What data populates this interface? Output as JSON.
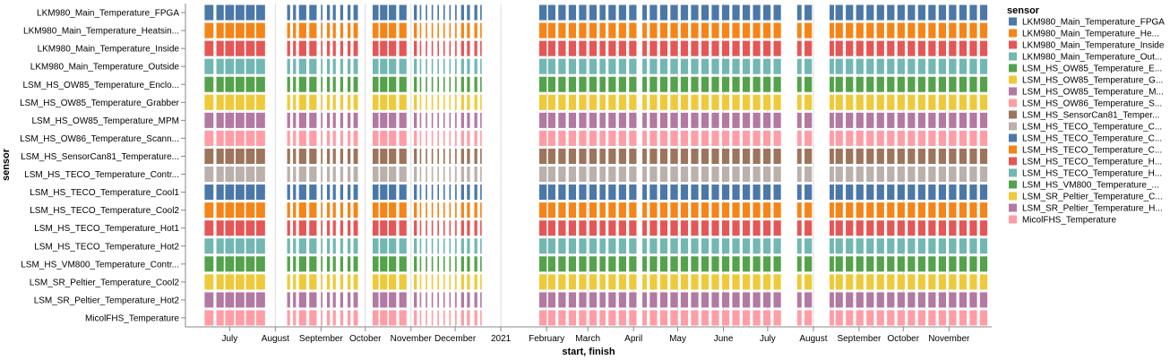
{
  "chart_data": {
    "type": "timeline",
    "ylabel": "sensor",
    "xlabel": "start, finish",
    "legend_title": "sensor",
    "legend_position": "right",
    "grid": true,
    "x_domain": [
      "2020-06-01",
      "2021-11-30"
    ],
    "x_ticks": [
      {
        "date": "2020-07-01",
        "label": "July"
      },
      {
        "date": "2020-08-01",
        "label": "August"
      },
      {
        "date": "2020-09-01",
        "label": "September"
      },
      {
        "date": "2020-10-01",
        "label": "October"
      },
      {
        "date": "2020-11-01",
        "label": "November"
      },
      {
        "date": "2020-12-01",
        "label": "December"
      },
      {
        "date": "2021-01-01",
        "label": "2021"
      },
      {
        "date": "2021-02-01",
        "label": "February"
      },
      {
        "date": "2021-03-01",
        "label": "March"
      },
      {
        "date": "2021-04-01",
        "label": "April"
      },
      {
        "date": "2021-05-01",
        "label": "May"
      },
      {
        "date": "2021-06-01",
        "label": "June"
      },
      {
        "date": "2021-07-01",
        "label": "July"
      },
      {
        "date": "2021-08-01",
        "label": "August"
      },
      {
        "date": "2021-09-01",
        "label": "September"
      },
      {
        "date": "2021-10-01",
        "label": "October"
      },
      {
        "date": "2021-11-01",
        "label": "November"
      }
    ],
    "sensors": [
      {
        "label": "LKM980_Main_Temperature_FPGA",
        "legend": "LKM980_Main_Temperature_FPGA",
        "color": "#4c78a8"
      },
      {
        "label": "LKM980_Main_Temperature_Heatsin...",
        "legend": "LKM980_Main_Temperature_He...",
        "color": "#f58518"
      },
      {
        "label": "LKM980_Main_Temperature_Inside",
        "legend": "LKM980_Main_Temperature_Inside",
        "color": "#e45756"
      },
      {
        "label": "LKM980_Main_Temperature_Outside",
        "legend": "LKM980_Main_Temperature_Out...",
        "color": "#72b7b2"
      },
      {
        "label": "LSM_HS_OW85_Temperature_Enclo...",
        "legend": "LSM_HS_OW85_Temperature_E...",
        "color": "#54a24b"
      },
      {
        "label": "LSM_HS_OW85_Temperature_Grabber",
        "legend": "LSM_HS_OW85_Temperature_G...",
        "color": "#eeca3b"
      },
      {
        "label": "LSM_HS_OW85_Temperature_MPM",
        "legend": "LSM_HS_OW85_Temperature_M...",
        "color": "#b279a2"
      },
      {
        "label": "LSM_HS_OW86_Temperature_Scann...",
        "legend": "LSM_HS_OW86_Temperature_S...",
        "color": "#ff9da6"
      },
      {
        "label": "LSM_HS_SensorCan81_Temperature...",
        "legend": "LSM_HS_SensorCan81_Temper...",
        "color": "#9d755d"
      },
      {
        "label": "LSM_HS_TECO_Temperature_Contr...",
        "legend": "LSM_HS_TECO_Temperature_C...",
        "color": "#bab0ac"
      },
      {
        "label": "LSM_HS_TECO_Temperature_Cool1",
        "legend": "LSM_HS_TECO_Temperature_C...",
        "color": "#4c78a8"
      },
      {
        "label": "LSM_HS_TECO_Temperature_Cool2",
        "legend": "LSM_HS_TECO_Temperature_C...",
        "color": "#f58518"
      },
      {
        "label": "LSM_HS_TECO_Temperature_Hot1",
        "legend": "LSM_HS_TECO_Temperature_H...",
        "color": "#e45756"
      },
      {
        "label": "LSM_HS_TECO_Temperature_Hot2",
        "legend": "LSM_HS_TECO_Temperature_H...",
        "color": "#72b7b2"
      },
      {
        "label": "LSM_HS_VM800_Temperature_Contr...",
        "legend": "LSM_HS_VM800_Temperature_...",
        "color": "#54a24b"
      },
      {
        "label": "LSM_SR_Peltier_Temperature_Cool2",
        "legend": "LSM_SR_Peltier_Temperature_C...",
        "color": "#eeca3b"
      },
      {
        "label": "LSM_SR_Peltier_Temperature_Hot2",
        "legend": "LSM_SR_Peltier_Temperature_H...",
        "color": "#b279a2"
      },
      {
        "label": "MicolFHS_Temperature",
        "legend": "MicolFHS_Temperature",
        "color": "#ff9da6"
      }
    ],
    "intervals": [
      [
        "2020-06-14",
        "2020-06-20"
      ],
      [
        "2020-06-22",
        "2020-06-27"
      ],
      [
        "2020-06-28",
        "2020-07-04"
      ],
      [
        "2020-07-05",
        "2020-07-11"
      ],
      [
        "2020-07-12",
        "2020-07-18"
      ],
      [
        "2020-07-19",
        "2020-07-25"
      ],
      [
        "2020-08-09",
        "2020-08-11"
      ],
      [
        "2020-08-13",
        "2020-08-15"
      ],
      [
        "2020-08-17",
        "2020-08-22"
      ],
      [
        "2020-08-24",
        "2020-08-29"
      ],
      [
        "2020-09-01",
        "2020-09-02"
      ],
      [
        "2020-09-05",
        "2020-09-07"
      ],
      [
        "2020-09-09",
        "2020-09-11"
      ],
      [
        "2020-09-14",
        "2020-09-16"
      ],
      [
        "2020-09-19",
        "2020-09-21"
      ],
      [
        "2020-09-23",
        "2020-09-26"
      ],
      [
        "2020-10-06",
        "2020-10-10"
      ],
      [
        "2020-10-11",
        "2020-10-16"
      ],
      [
        "2020-10-17",
        "2020-10-22"
      ],
      [
        "2020-10-24",
        "2020-10-29"
      ],
      [
        "2020-11-03",
        "2020-11-05"
      ],
      [
        "2020-11-07",
        "2020-11-08"
      ],
      [
        "2020-11-11",
        "2020-11-12"
      ],
      [
        "2020-11-15",
        "2020-11-16"
      ],
      [
        "2020-11-19",
        "2020-11-20"
      ],
      [
        "2020-11-23",
        "2020-11-24"
      ],
      [
        "2020-11-27",
        "2020-11-28"
      ],
      [
        "2020-12-01",
        "2020-12-02"
      ],
      [
        "2020-12-05",
        "2020-12-07"
      ],
      [
        "2020-12-09",
        "2020-12-11"
      ],
      [
        "2020-12-14",
        "2020-12-16"
      ],
      [
        "2020-12-18",
        "2020-12-19"
      ],
      [
        "2021-01-27",
        "2021-02-01"
      ],
      [
        "2021-02-02",
        "2021-02-07"
      ],
      [
        "2021-02-09",
        "2021-02-14"
      ],
      [
        "2021-02-16",
        "2021-02-21"
      ],
      [
        "2021-02-23",
        "2021-02-28"
      ],
      [
        "2021-03-02",
        "2021-03-07"
      ],
      [
        "2021-03-09",
        "2021-03-13"
      ],
      [
        "2021-03-15",
        "2021-03-20"
      ],
      [
        "2021-03-22",
        "2021-03-27"
      ],
      [
        "2021-03-29",
        "2021-04-03"
      ],
      [
        "2021-04-07",
        "2021-04-10"
      ],
      [
        "2021-04-12",
        "2021-04-17"
      ],
      [
        "2021-04-19",
        "2021-04-24"
      ],
      [
        "2021-04-26",
        "2021-05-01"
      ],
      [
        "2021-05-03",
        "2021-05-08"
      ],
      [
        "2021-05-10",
        "2021-05-15"
      ],
      [
        "2021-05-17",
        "2021-05-22"
      ],
      [
        "2021-05-24",
        "2021-05-29"
      ],
      [
        "2021-05-31",
        "2021-06-05"
      ],
      [
        "2021-06-07",
        "2021-06-12"
      ],
      [
        "2021-06-14",
        "2021-06-19"
      ],
      [
        "2021-06-21",
        "2021-06-26"
      ],
      [
        "2021-06-28",
        "2021-07-03"
      ],
      [
        "2021-07-05",
        "2021-07-10"
      ],
      [
        "2021-07-21",
        "2021-07-24"
      ],
      [
        "2021-07-26",
        "2021-07-31"
      ],
      [
        "2021-08-12",
        "2021-08-15"
      ],
      [
        "2021-08-16",
        "2021-08-21"
      ],
      [
        "2021-08-23",
        "2021-08-28"
      ],
      [
        "2021-08-30",
        "2021-09-04"
      ],
      [
        "2021-09-06",
        "2021-09-11"
      ],
      [
        "2021-09-13",
        "2021-09-18"
      ],
      [
        "2021-09-20",
        "2021-09-25"
      ],
      [
        "2021-09-27",
        "2021-10-02"
      ],
      [
        "2021-10-04",
        "2021-10-09"
      ],
      [
        "2021-10-11",
        "2021-10-16"
      ],
      [
        "2021-10-18",
        "2021-10-23"
      ],
      [
        "2021-10-25",
        "2021-10-30"
      ],
      [
        "2021-11-01",
        "2021-11-06"
      ],
      [
        "2021-11-08",
        "2021-11-13"
      ],
      [
        "2021-11-15",
        "2021-11-20"
      ],
      [
        "2021-11-22",
        "2021-11-27"
      ]
    ]
  }
}
